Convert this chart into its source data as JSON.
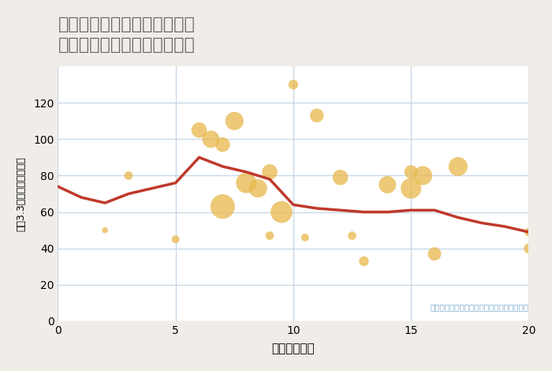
{
  "title": "愛知県稲沢市祖父江町上牧の\n駅距離別中古マンション価格",
  "xlabel": "駅距離（分）",
  "ylabel": "坪（3.3㎡）単価（万円）",
  "background_color": "#f0ede8",
  "plot_bg_color": "#ffffff",
  "annotation": "円の大きさは、取引のあった物件面積を示す",
  "scatter_x": [
    2,
    3,
    5,
    6,
    6.5,
    7,
    7,
    7.5,
    8,
    8.5,
    9,
    9,
    9.5,
    10,
    10.5,
    11,
    12,
    12.5,
    13,
    14,
    15,
    15,
    15.5,
    16,
    17,
    20,
    20
  ],
  "scatter_y": [
    50,
    80,
    45,
    105,
    100,
    97,
    63,
    110,
    76,
    73,
    82,
    47,
    60,
    130,
    46,
    113,
    79,
    47,
    33,
    75,
    82,
    73,
    80,
    37,
    85,
    40,
    49
  ],
  "scatter_size": [
    30,
    60,
    50,
    200,
    250,
    180,
    500,
    280,
    350,
    280,
    200,
    60,
    400,
    80,
    50,
    160,
    200,
    60,
    80,
    250,
    150,
    350,
    300,
    150,
    300,
    80,
    60
  ],
  "line_x": [
    0,
    1,
    2,
    3,
    4,
    5,
    6,
    7,
    8,
    9,
    10,
    11,
    12,
    13,
    14,
    15,
    16,
    17,
    18,
    19,
    20
  ],
  "line_y": [
    74,
    68,
    65,
    70,
    73,
    76,
    90,
    85,
    82,
    78,
    64,
    62,
    61,
    60,
    60,
    61,
    61,
    57,
    54,
    52,
    49
  ],
  "line_color": "#c0392b",
  "scatter_color": "#e8b84b",
  "scatter_alpha": 0.75,
  "xlim": [
    0,
    20
  ],
  "ylim": [
    0,
    140
  ],
  "yticks": [
    0,
    20,
    40,
    60,
    80,
    100,
    120
  ],
  "xticks": [
    0,
    5,
    10,
    15,
    20
  ],
  "grid_color": "#c8d8e8",
  "title_color": "#666666",
  "annotation_color": "#7aaccf"
}
